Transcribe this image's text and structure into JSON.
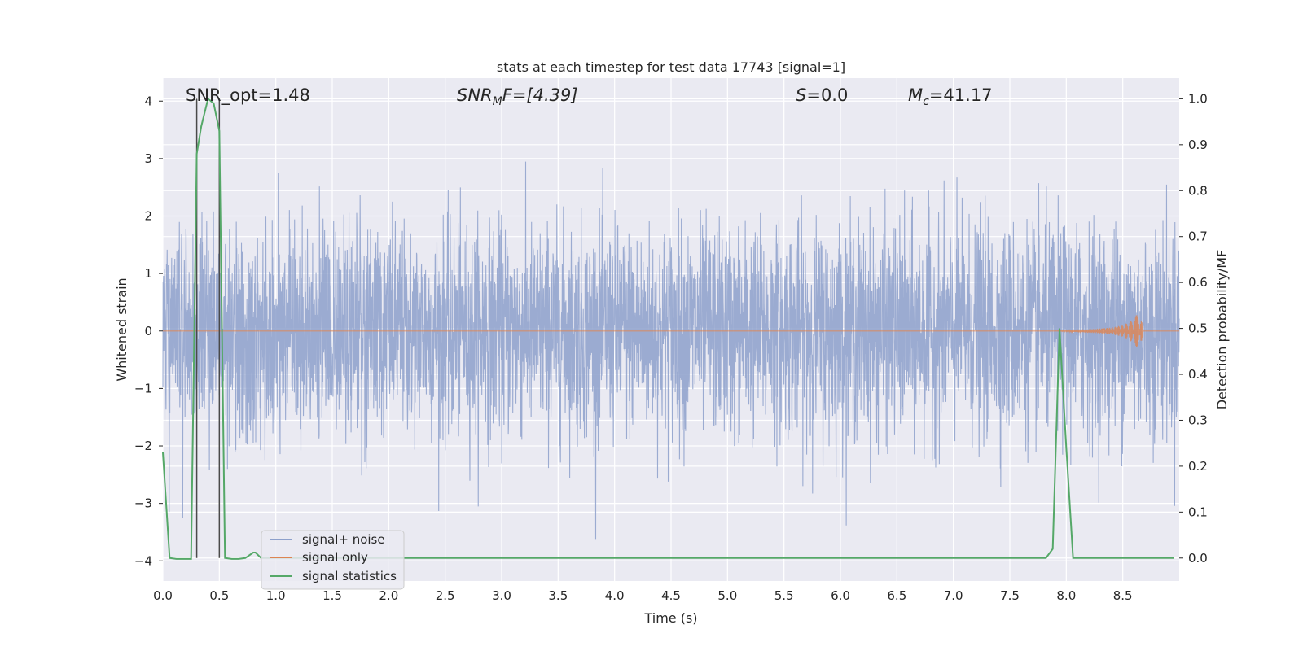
{
  "chart_data": {
    "type": "line",
    "title": "stats at each timestep for test data 17743 [signal=1]",
    "xlabel": "Time (s)",
    "ylabel_left": "Whitened strain",
    "ylabel_right": "Detection probability/MF",
    "xlim": [
      0,
      9.0
    ],
    "ylim_left": [
      -4.35,
      4.4
    ],
    "ylim_right": [
      -0.05,
      1.045
    ],
    "grid": true,
    "legend_placement": "lower-left",
    "x_ticks": [
      0.0,
      0.5,
      1.0,
      1.5,
      2.0,
      2.5,
      3.0,
      3.5,
      4.0,
      4.5,
      5.0,
      5.5,
      6.0,
      6.5,
      7.0,
      7.5,
      8.0,
      8.5
    ],
    "x_tick_labels": [
      "0.0",
      "0.5",
      "1.0",
      "1.5",
      "2.0",
      "2.5",
      "3.0",
      "3.5",
      "4.0",
      "4.5",
      "5.0",
      "5.5",
      "6.0",
      "6.5",
      "7.0",
      "7.5",
      "8.0",
      "8.5"
    ],
    "y_left_ticks": [
      -4,
      -3,
      -2,
      -1,
      0,
      1,
      2,
      3,
      4
    ],
    "y_left_tick_labels": [
      "−4",
      "−3",
      "−2",
      "−1",
      "0",
      "1",
      "2",
      "3",
      "4"
    ],
    "y_right_ticks": [
      0.0,
      0.1,
      0.2,
      0.3,
      0.4,
      0.5,
      0.6,
      0.7,
      0.8,
      0.9,
      1.0
    ],
    "y_right_tick_labels": [
      "0.0",
      "0.1",
      "0.2",
      "0.3",
      "0.4",
      "0.5",
      "0.6",
      "0.7",
      "0.8",
      "0.9",
      "1.0"
    ],
    "annotations": {
      "snr_opt": "SNR_opt=1.48",
      "snr_mf_sym": "SNR",
      "snr_mf_sub": "M",
      "snr_mf_rest": "F=[4.39]",
      "s_sym": "S",
      "s_rest": "=0.0",
      "mc_sym": "M",
      "mc_sub": "c",
      "mc_rest": "=41.17"
    },
    "vertical_markers_x": [
      0.3,
      0.5
    ],
    "series": [
      {
        "name": "signal+ noise",
        "color": "#8da0cb",
        "description_axis": "left",
        "sample_rate": 2048,
        "duration": 9.0,
        "envelope_abs_max": 4.0
      },
      {
        "name": "signal only",
        "color": "#dd8452",
        "description_axis": "left",
        "x": [
          0.0,
          7.9,
          8.2,
          8.4,
          8.5,
          8.55,
          8.6,
          8.63,
          8.66,
          8.68
        ],
        "amp": [
          0.0,
          0.0,
          0.03,
          0.06,
          0.1,
          0.15,
          0.22,
          0.3,
          0.4,
          0.0
        ]
      },
      {
        "name": "signal statistics",
        "color": "#55a868",
        "description_axis": "right",
        "x": [
          0.0,
          0.06,
          0.12,
          0.18,
          0.25,
          0.3,
          0.34,
          0.4,
          0.45,
          0.5,
          0.55,
          0.61,
          0.67,
          0.73,
          0.8,
          0.82,
          0.87,
          1.0,
          2.0,
          3.0,
          4.0,
          5.0,
          6.0,
          7.0,
          7.7,
          7.82,
          7.88,
          7.94,
          8.0,
          8.06,
          8.5,
          8.95
        ],
        "y": [
          0.23,
          0.0,
          -0.002,
          -0.002,
          -0.002,
          0.88,
          0.94,
          1.0,
          0.99,
          0.93,
          0.0,
          -0.002,
          -0.002,
          0.0,
          0.012,
          0.012,
          0.0,
          0.0,
          0.0,
          0.0,
          0.0,
          0.0,
          0.0,
          0.0,
          0.0,
          0.0,
          0.02,
          0.5,
          0.24,
          0.0,
          0.0,
          0.0
        ]
      }
    ]
  }
}
